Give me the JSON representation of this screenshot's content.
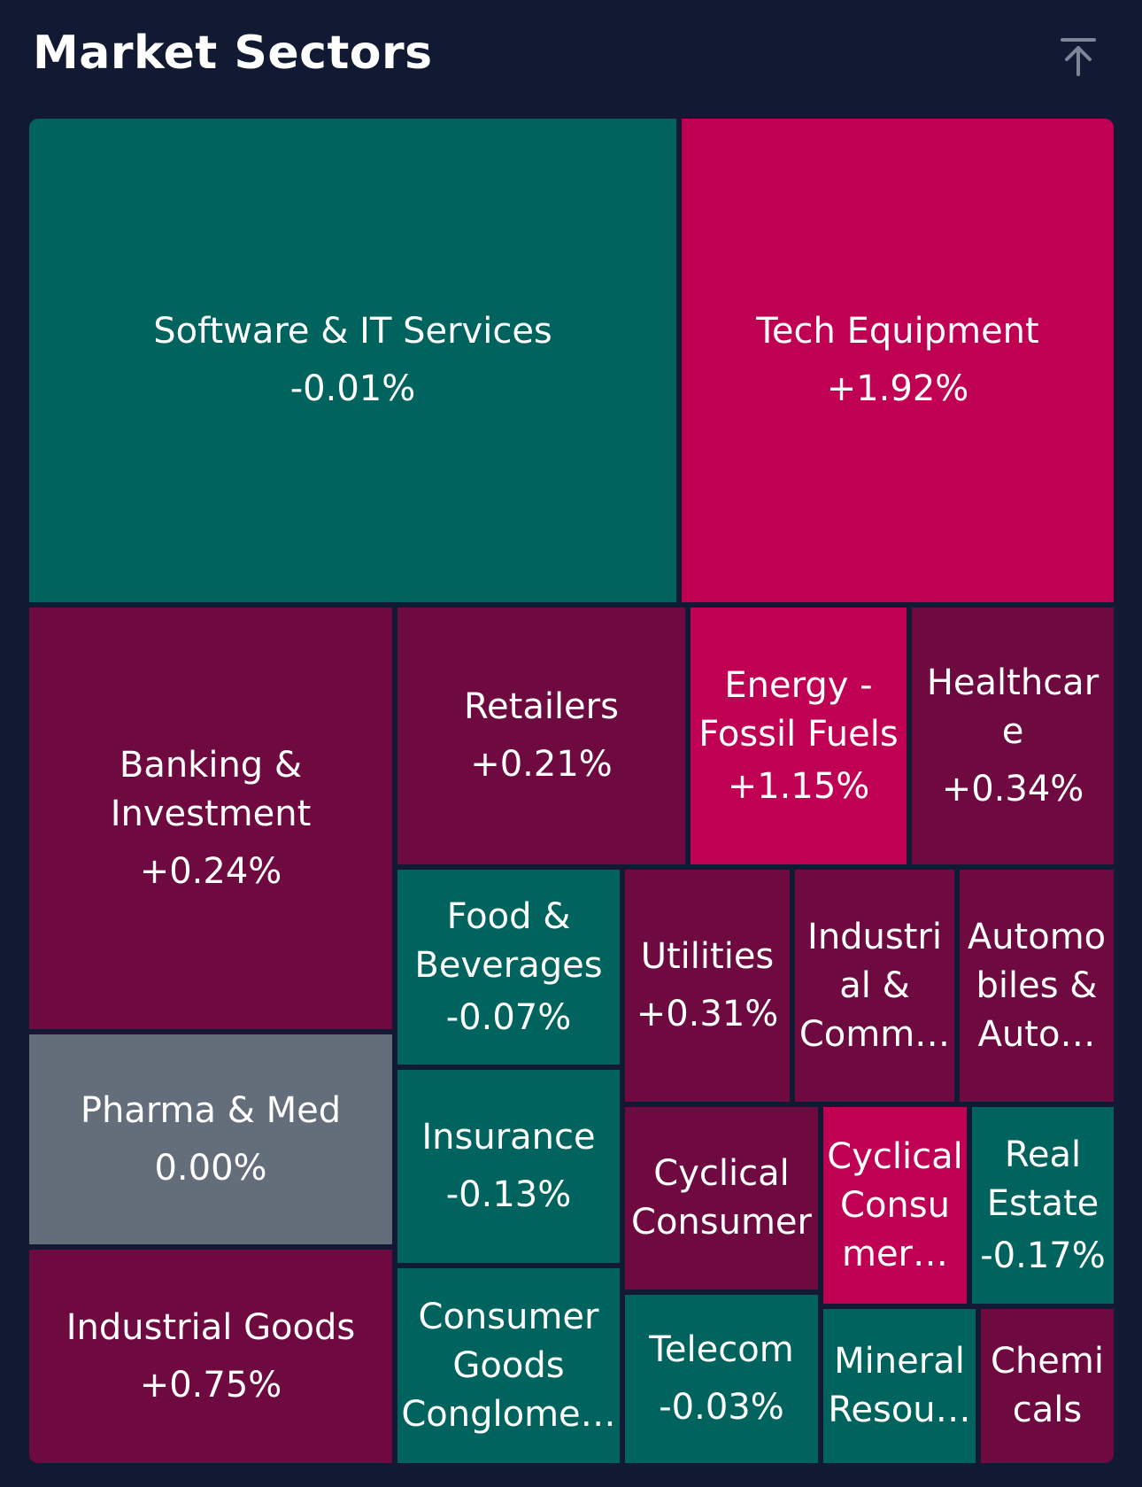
{
  "header": {
    "title": "Market Sectors",
    "scroll_top_icon": "arrow-up-to-line-icon"
  },
  "colors": {
    "background": "#121933",
    "negative": "#00635d",
    "positive_small": "#6f0a40",
    "positive_large": "#bf0053",
    "neutral": "#646d7a"
  },
  "tiles": [
    {
      "name": "Software & IT Services",
      "change": "-0.01%",
      "change_value": -0.01
    },
    {
      "name": "Tech Equipment",
      "change": "+1.92%",
      "change_value": 1.92
    },
    {
      "name": "Banking & Investment",
      "change": "+0.24%",
      "change_value": 0.24
    },
    {
      "name": "Retailers",
      "change": "+0.21%",
      "change_value": 0.21
    },
    {
      "name": "Energy - Fossil Fuels",
      "change": "+1.15%",
      "change_value": 1.15
    },
    {
      "name": "Healthcare",
      "change": "+0.34%",
      "change_value": 0.34
    },
    {
      "name": "Food & Beverages",
      "change": "-0.07%",
      "change_value": -0.07
    },
    {
      "name": "Utilities",
      "change": "+0.31%",
      "change_value": 0.31
    },
    {
      "name": "Industri al & Comm…",
      "change": "",
      "change_value": null
    },
    {
      "name": "Automo biles & Auto…",
      "change": "",
      "change_value": null
    },
    {
      "name": "Pharma & Med",
      "change": "0.00%",
      "change_value": 0.0
    },
    {
      "name": "Insurance",
      "change": "-0.13%",
      "change_value": -0.13
    },
    {
      "name": "Cyclical Consumer",
      "change": "",
      "change_value": null
    },
    {
      "name": "Cyclical Consu mer…",
      "change": "",
      "change_value": null
    },
    {
      "name": "Real Estate",
      "change": "-0.17%",
      "change_value": -0.17
    },
    {
      "name": "Industrial Goods",
      "change": "+0.75%",
      "change_value": 0.75
    },
    {
      "name": "Consumer Goods Conglome…",
      "change": "",
      "change_value": null
    },
    {
      "name": "Telecom",
      "change": "-0.03%",
      "change_value": -0.03
    },
    {
      "name": "Mineral Resou…",
      "change": "",
      "change_value": null
    },
    {
      "name": "Chemi cals",
      "change": "",
      "change_value": null
    }
  ]
}
